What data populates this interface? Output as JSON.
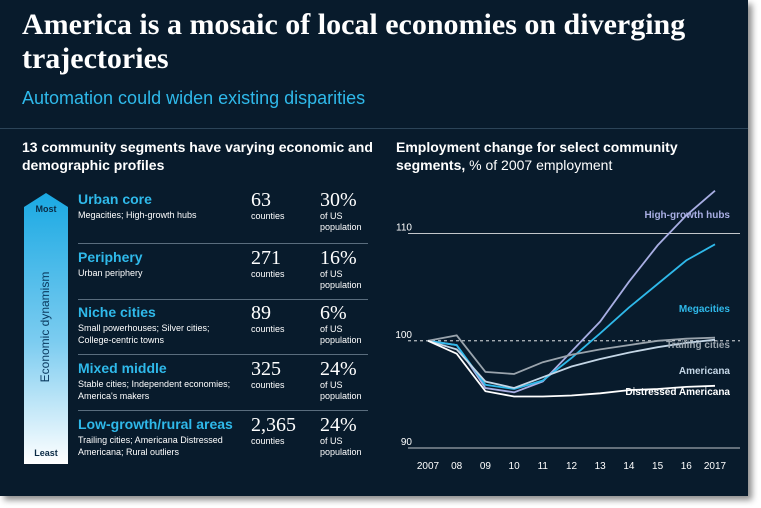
{
  "title": "America is a mosaic of local economies on diverging trajectories",
  "subtitle": "Automation could widen existing disparities",
  "left_heading": "13 community segments have varying economic and demographic profiles",
  "dynamism": {
    "label": "Economic dynamism",
    "top": "Most",
    "bottom": "Least"
  },
  "segments": [
    {
      "name": "Urban core",
      "description": "Megacities; High-growth hubs",
      "counties": "63",
      "counties_unit": "counties",
      "pct": "30%",
      "pct_unit": "of US population"
    },
    {
      "name": "Periphery",
      "description": "Urban periphery",
      "counties": "271",
      "counties_unit": "counties",
      "pct": "16%",
      "pct_unit": "of US population"
    },
    {
      "name": "Niche cities",
      "description": "Small powerhouses; Silver cities; College-centric towns",
      "counties": "89",
      "counties_unit": "counties",
      "pct": "6%",
      "pct_unit": "of US population"
    },
    {
      "name": "Mixed middle",
      "description": "Stable cities; Independent economies; America's makers",
      "counties": "325",
      "counties_unit": "counties",
      "pct": "24%",
      "pct_unit": "of US population"
    },
    {
      "name": "Low-growth/rural areas",
      "description": "Trailing cities; Americana Distressed Americana; Rural outliers",
      "counties": "2,365",
      "counties_unit": "counties",
      "pct": "24%",
      "pct_unit": "of US population"
    }
  ],
  "chart_data": {
    "type": "line",
    "title_bold": "Employment change for select community segments,",
    "title_rest": " % of 2007 employment",
    "x": [
      "2007",
      "08",
      "09",
      "10",
      "11",
      "12",
      "13",
      "14",
      "15",
      "16",
      "2017"
    ],
    "ylim": [
      90,
      115
    ],
    "yticks": [
      90,
      100,
      110
    ],
    "baseline": 100,
    "grid": true,
    "series": [
      {
        "name": "High-growth hubs",
        "color": "#a8aee3",
        "values": [
          100,
          99.6,
          95.6,
          95.2,
          96.2,
          99,
          101.8,
          105.5,
          108.9,
          111.7,
          114
        ]
      },
      {
        "name": "Megacities",
        "color": "#2fb9ea",
        "values": [
          100,
          99.6,
          95.9,
          95.5,
          96.3,
          98.4,
          100.7,
          103.1,
          105.3,
          107.5,
          109
        ]
      },
      {
        "name": "Trailing cities",
        "color": "#9aa4ad",
        "values": [
          100,
          100.5,
          97.1,
          96.9,
          98,
          98.7,
          99.2,
          99.6,
          100,
          100.2,
          100.3
        ]
      },
      {
        "name": "Americana",
        "color": "#c4d6e6",
        "values": [
          100,
          99.2,
          96.2,
          95.6,
          96.6,
          97.6,
          98.3,
          98.9,
          99.4,
          99.8,
          100.1
        ]
      },
      {
        "name": "Distressed Americana",
        "color": "#ffffff",
        "values": [
          100,
          98.8,
          95.3,
          94.8,
          94.8,
          94.9,
          95.1,
          95.4,
          95.5,
          95.7,
          95.8
        ]
      }
    ]
  }
}
